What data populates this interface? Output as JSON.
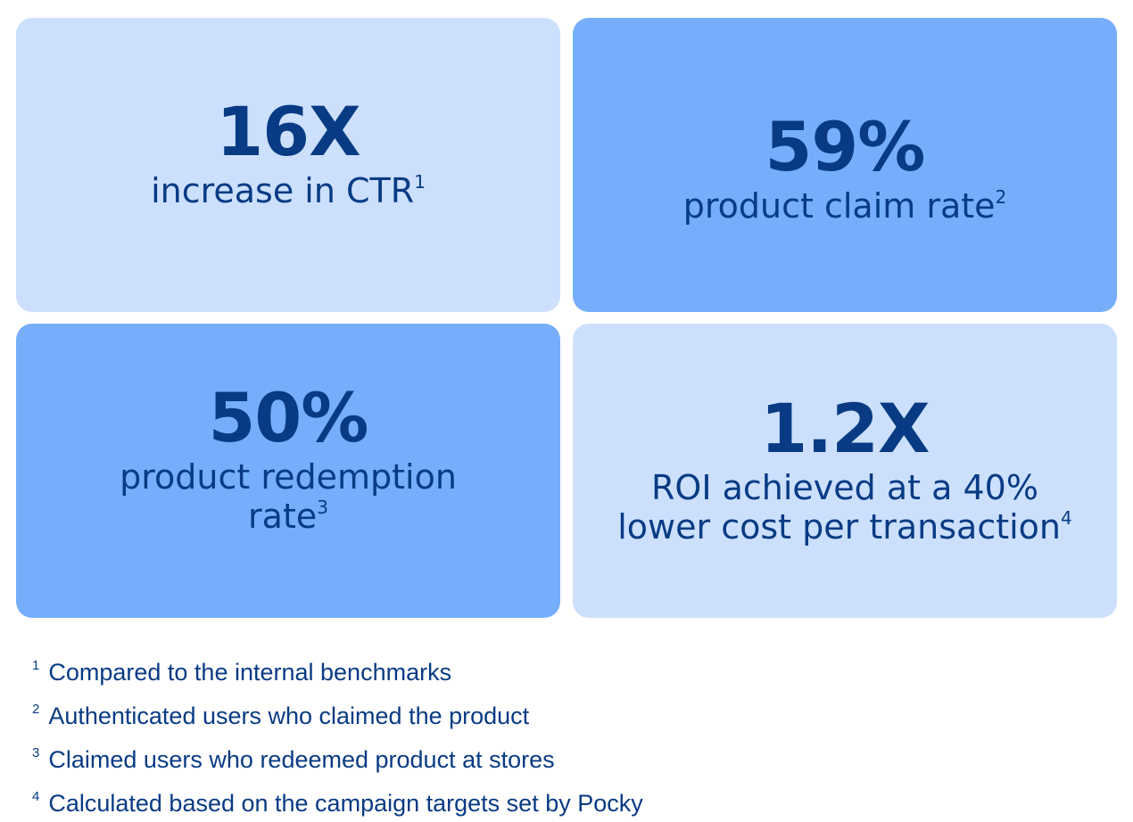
{
  "stats": [
    {
      "value": "16X",
      "lines": [
        "increase in CTR"
      ],
      "footnote_ref": "1"
    },
    {
      "value": "59%",
      "lines": [
        "product claim rate"
      ],
      "footnote_ref": "2"
    },
    {
      "value": "50%",
      "lines": [
        "product redemption",
        "rate"
      ],
      "footnote_ref": "3"
    },
    {
      "value": "1.2X",
      "lines": [
        "ROI achieved at a 40%",
        "lower cost per transaction"
      ],
      "footnote_ref": "4"
    }
  ],
  "footnotes": [
    {
      "num": "1",
      "text": "Compared to the internal benchmarks"
    },
    {
      "num": "2",
      "text": "Authenticated users who claimed the product"
    },
    {
      "num": "3",
      "text": "Claimed users who redeemed product at stores"
    },
    {
      "num": "4",
      "text": "Calculated based on the campaign targets set by Pocky"
    }
  ],
  "colors": {
    "card_light": "#cce0fd",
    "card_mid": "#76aefb",
    "text": "#083b84"
  }
}
